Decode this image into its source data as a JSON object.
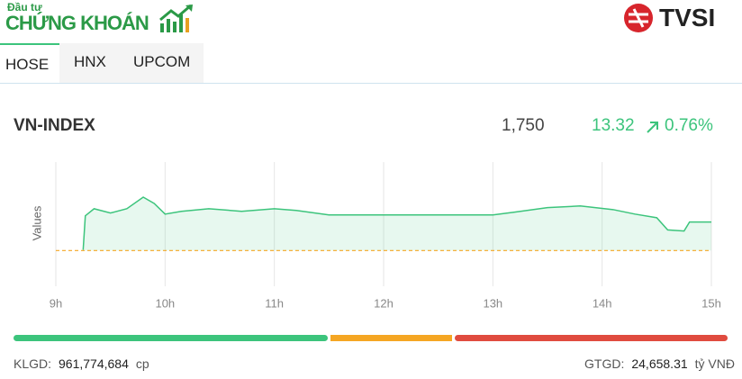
{
  "header": {
    "brand_top": "Đầu tư",
    "brand_main": "CHỨNG KHOÁN",
    "partner": "TVSI"
  },
  "tabs": [
    "HOSE",
    "HNX",
    "UPCOM"
  ],
  "index": {
    "name": "VN-INDEX",
    "value": "1,750",
    "change": "13.32",
    "change_pct": "0.76%"
  },
  "chart_data": {
    "type": "line",
    "ylabel": "Values",
    "series": [
      {
        "color": "#3cc47c",
        "x": [
          9.25,
          9.27,
          9.35,
          9.5,
          9.65,
          9.8,
          9.9,
          10.0,
          10.15,
          10.4,
          10.7,
          11.0,
          11.2,
          11.5,
          13.0,
          13.2,
          13.5,
          13.8,
          14.1,
          14.3,
          14.5,
          14.6,
          14.75,
          14.8,
          15.0
        ],
        "values": [
          1737,
          1752.9,
          1756.2,
          1754.2,
          1756.2,
          1761.6,
          1758.7,
          1753.7,
          1755,
          1756.2,
          1755,
          1756.2,
          1755.4,
          1753.3,
          1753.3,
          1754.6,
          1756.7,
          1757.5,
          1755.8,
          1753.7,
          1752,
          1746.3,
          1745.8,
          1750,
          1750
        ]
      }
    ],
    "reference": 1736.68,
    "reference_color": "#f5a623",
    "xlim": [
      9,
      15
    ],
    "ylim": [
      1720,
      1778
    ],
    "xticks": [
      {
        "value": 9,
        "label": "9h"
      },
      {
        "value": 10,
        "label": "10h"
      },
      {
        "value": 11,
        "label": "11h"
      },
      {
        "value": 12,
        "label": "12h"
      },
      {
        "value": 13,
        "label": "13h"
      },
      {
        "value": 14,
        "label": "14h"
      },
      {
        "value": 15,
        "label": "15h"
      }
    ],
    "grid": true
  },
  "footer": {
    "volume_label": "KLGD:",
    "volume": "961,774,684",
    "volume_unit": "cp",
    "value_label": "GTGD:",
    "value": "24,658.31",
    "value_unit": "tỷ VNĐ"
  }
}
